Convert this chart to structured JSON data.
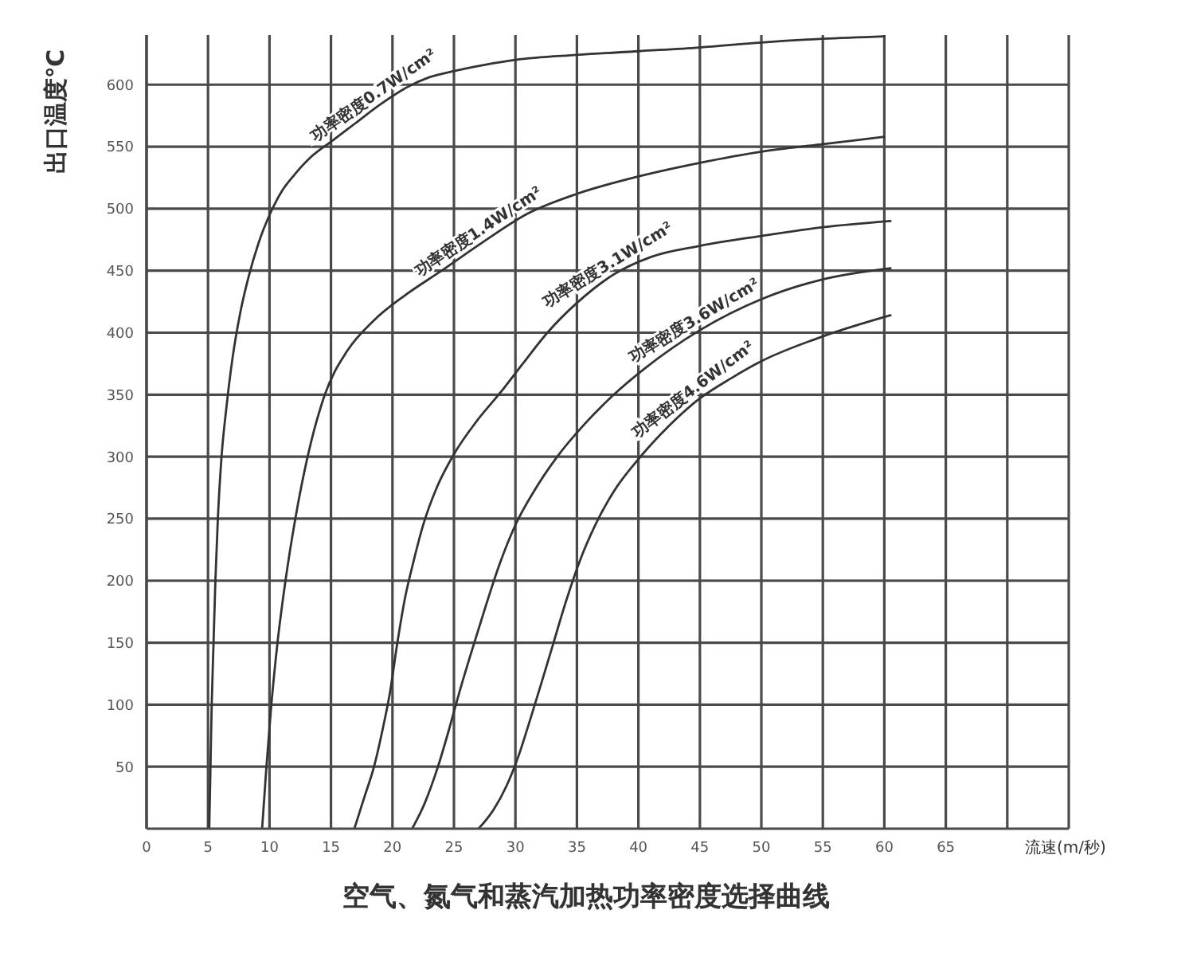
{
  "chart_data": {
    "type": "line",
    "title": "空气、氮气和蒸汽加热功率密度选择曲线",
    "xlabel": "流速(m/秒)",
    "ylabel": "出口温度℃",
    "xlim": [
      0,
      75
    ],
    "xticks": [
      0,
      5,
      10,
      15,
      20,
      25,
      30,
      35,
      40,
      45,
      50,
      55,
      60,
      65,
      {
        "value": 70,
        "label": null
      }
    ],
    "ylim": [
      0,
      640
    ],
    "yticks": [
      50,
      100,
      150,
      200,
      250,
      300,
      350,
      400,
      450,
      500,
      550,
      600
    ],
    "grid": true,
    "marker": "none",
    "line_style": "solid",
    "series": [
      {
        "name": "功率密度0.7W/cm²",
        "color": "#333333",
        "x": [
          5.1,
          5.2,
          5.3,
          5.45,
          5.6,
          5.8,
          6.1,
          6.5,
          7.0,
          7.6,
          8.3,
          9.1,
          10.1,
          11,
          12,
          13.3,
          15,
          17,
          19,
          21.2,
          23,
          25,
          27.5,
          30,
          35,
          40,
          45,
          50,
          55,
          60
        ],
        "values": [
          0,
          50,
          100,
          150,
          200,
          250,
          300,
          340,
          380,
          415,
          445,
          472,
          497,
          514,
          527,
          541,
          554,
          569,
          584,
          598,
          606,
          611,
          616,
          620,
          624,
          627,
          630,
          634,
          637,
          639
        ]
      },
      {
        "name": "功率密度1.4W/cm²",
        "color": "#333333",
        "x": [
          9.4,
          9.75,
          10.15,
          10.65,
          11.3,
          12.1,
          13.1,
          14.5,
          16.3,
          18.5,
          21,
          24,
          27.5,
          31,
          35,
          40,
          45,
          50,
          55,
          60
        ],
        "values": [
          0,
          50,
          100,
          150,
          200,
          250,
          300,
          350,
          385,
          410,
          430,
          450,
          474,
          496,
          512,
          526,
          537,
          546,
          552,
          558
        ]
      },
      {
        "name": "功率密度3.1W/cm²",
        "color": "#333333",
        "x": [
          16.9,
          17.7,
          18.5,
          19.2,
          19.8,
          20.4,
          21,
          21.7,
          22.5,
          23.6,
          25,
          26.8,
          28.8,
          30.6,
          32.6,
          35,
          38,
          41,
          45,
          50,
          55,
          60.5
        ],
        "values": [
          0,
          25,
          50,
          80,
          110,
          150,
          185,
          215,
          245,
          275,
          302,
          328,
          352,
          375,
          400,
          424,
          447,
          461,
          470,
          478,
          485,
          490
        ]
      },
      {
        "name": "功率密度3.6W/cm²",
        "color": "#333333",
        "x": [
          21.6,
          22.6,
          23.7,
          24.6,
          25.5,
          26.5,
          27.6,
          28.7,
          30,
          31.5,
          33.4,
          35.6,
          38,
          40.5,
          45,
          50,
          55,
          60.5
        ],
        "values": [
          0,
          20,
          50,
          80,
          112,
          145,
          180,
          213,
          245,
          272,
          300,
          326,
          350,
          371,
          402,
          427,
          443,
          452
        ]
      },
      {
        "name": "功率密度4.6W/cm²",
        "color": "#333333",
        "x": [
          27,
          28.2,
          29.3,
          30.3,
          31.2,
          32.1,
          33.1,
          34.1,
          35.2,
          36.5,
          38,
          40,
          42.5,
          45,
          47.5,
          50,
          55,
          60.5
        ],
        "values": [
          0,
          15,
          35,
          60,
          88,
          117,
          150,
          183,
          215,
          245,
          272,
          298,
          325,
          347,
          363,
          377,
          397,
          414
        ]
      }
    ]
  }
}
